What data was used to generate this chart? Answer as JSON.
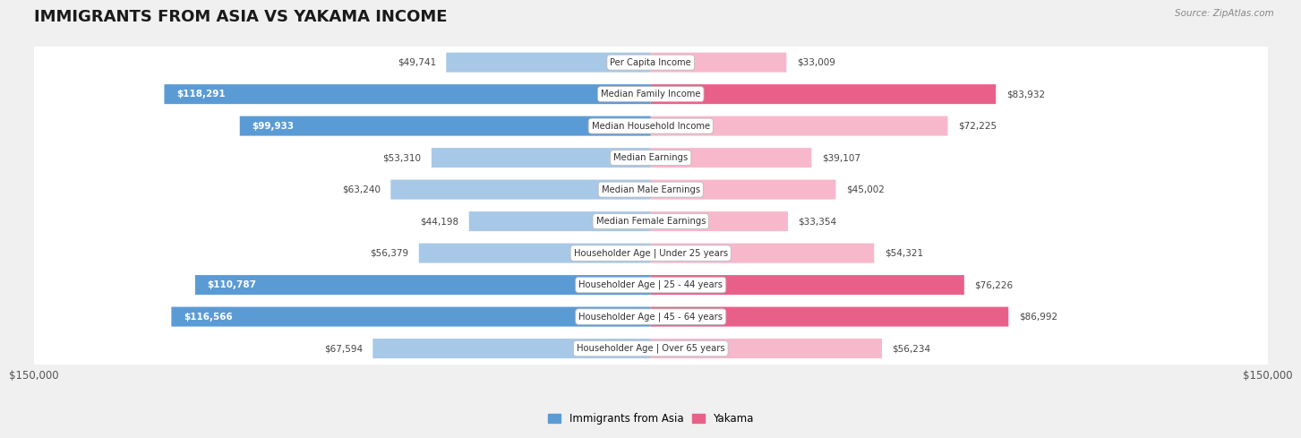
{
  "title": "IMMIGRANTS FROM ASIA VS YAKAMA INCOME",
  "source": "Source: ZipAtlas.com",
  "categories": [
    "Per Capita Income",
    "Median Family Income",
    "Median Household Income",
    "Median Earnings",
    "Median Male Earnings",
    "Median Female Earnings",
    "Householder Age | Under 25 years",
    "Householder Age | 25 - 44 years",
    "Householder Age | 45 - 64 years",
    "Householder Age | Over 65 years"
  ],
  "asia_values": [
    49741,
    118291,
    99933,
    53310,
    63240,
    44198,
    56379,
    110787,
    116566,
    67594
  ],
  "yakama_values": [
    33009,
    83932,
    72225,
    39107,
    45002,
    33354,
    54321,
    76226,
    86992,
    56234
  ],
  "asia_color_light": "#a8c8e8",
  "asia_color_dark": "#5b9bd5",
  "yakama_color_light": "#f8b8cc",
  "yakama_color_dark": "#e8608a",
  "max_value": 150000,
  "background_color": "#f0f0f0",
  "row_bg": "#ffffff",
  "title_fontsize": 13,
  "legend_labels": [
    "Immigrants from Asia",
    "Yakama"
  ],
  "inside_label_threshold": 75000
}
